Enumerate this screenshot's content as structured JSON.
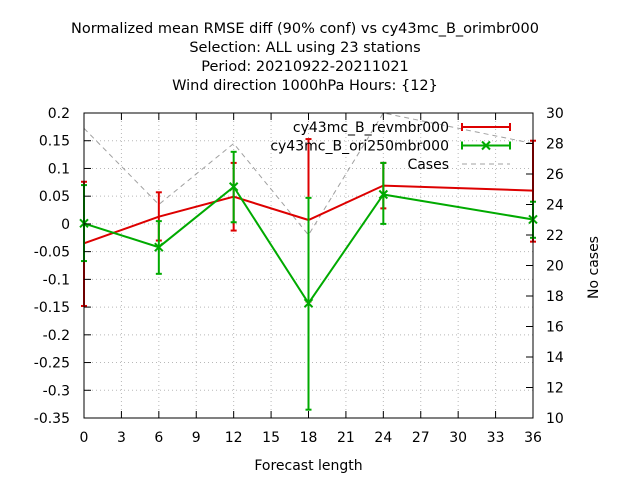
{
  "chart_data": {
    "type": "line",
    "title_lines": [
      "Normalized mean RMSE diff (90% conf) vs cy43mc_B_orimbr000",
      "Selection: ALL using    23 stations",
      "Period: 20210922-20211021",
      "Wind direction 1000hPa   Hours: {12}"
    ],
    "xlabel": "Forecast length",
    "ylabel": "",
    "y2label": "No cases",
    "xlim": [
      0,
      36
    ],
    "ylim": [
      -0.35,
      0.2
    ],
    "y2lim": [
      10,
      30
    ],
    "xticks": [
      "0",
      "3",
      "6",
      "9",
      "12",
      "15",
      "18",
      "21",
      "24",
      "27",
      "30",
      "33",
      "36"
    ],
    "yticks": [
      "0.2",
      "0.15",
      "0.1",
      "0.05",
      "0",
      "-0.05",
      "-0.1",
      "-0.15",
      "-0.2",
      "-0.25",
      "-0.3",
      "-0.35"
    ],
    "y2ticks": [
      "30",
      "28",
      "26",
      "24",
      "22",
      "20",
      "18",
      "16",
      "14",
      "12",
      "10"
    ],
    "grid": true,
    "legend_position": "top-right",
    "series": [
      {
        "name": "cy43mc_B_revmbr000",
        "color": "#dd0000",
        "marker": "errorbar",
        "x": [
          0,
          6,
          12,
          18,
          24,
          36
        ],
        "y": [
          -0.035,
          0.013,
          0.049,
          0.007,
          0.069,
          0.06
        ],
        "err_low": [
          -0.148,
          -0.03,
          -0.012,
          -0.14,
          0.028,
          -0.032
        ],
        "err_high": [
          0.076,
          0.057,
          0.11,
          0.153,
          0.11,
          0.15
        ]
      },
      {
        "name": "cy43mc_B_ori250mbr000",
        "color": "#00aa00",
        "marker": "x",
        "x": [
          0,
          6,
          12,
          18,
          24,
          36
        ],
        "y": [
          0.001,
          -0.042,
          0.067,
          -0.143,
          0.053,
          0.008
        ],
        "err_low": [
          -0.067,
          -0.09,
          0.003,
          -0.335,
          0.0,
          -0.025
        ],
        "err_high": [
          0.07,
          0.005,
          0.13,
          0.047,
          0.11,
          0.04
        ]
      },
      {
        "name": "Cases",
        "color": "#a0a0a0",
        "marker": "none",
        "dashed": true,
        "axis": "right",
        "x": [
          0,
          6,
          12,
          18,
          24,
          36
        ],
        "y": [
          29,
          24,
          28,
          22,
          30,
          28
        ]
      }
    ]
  }
}
